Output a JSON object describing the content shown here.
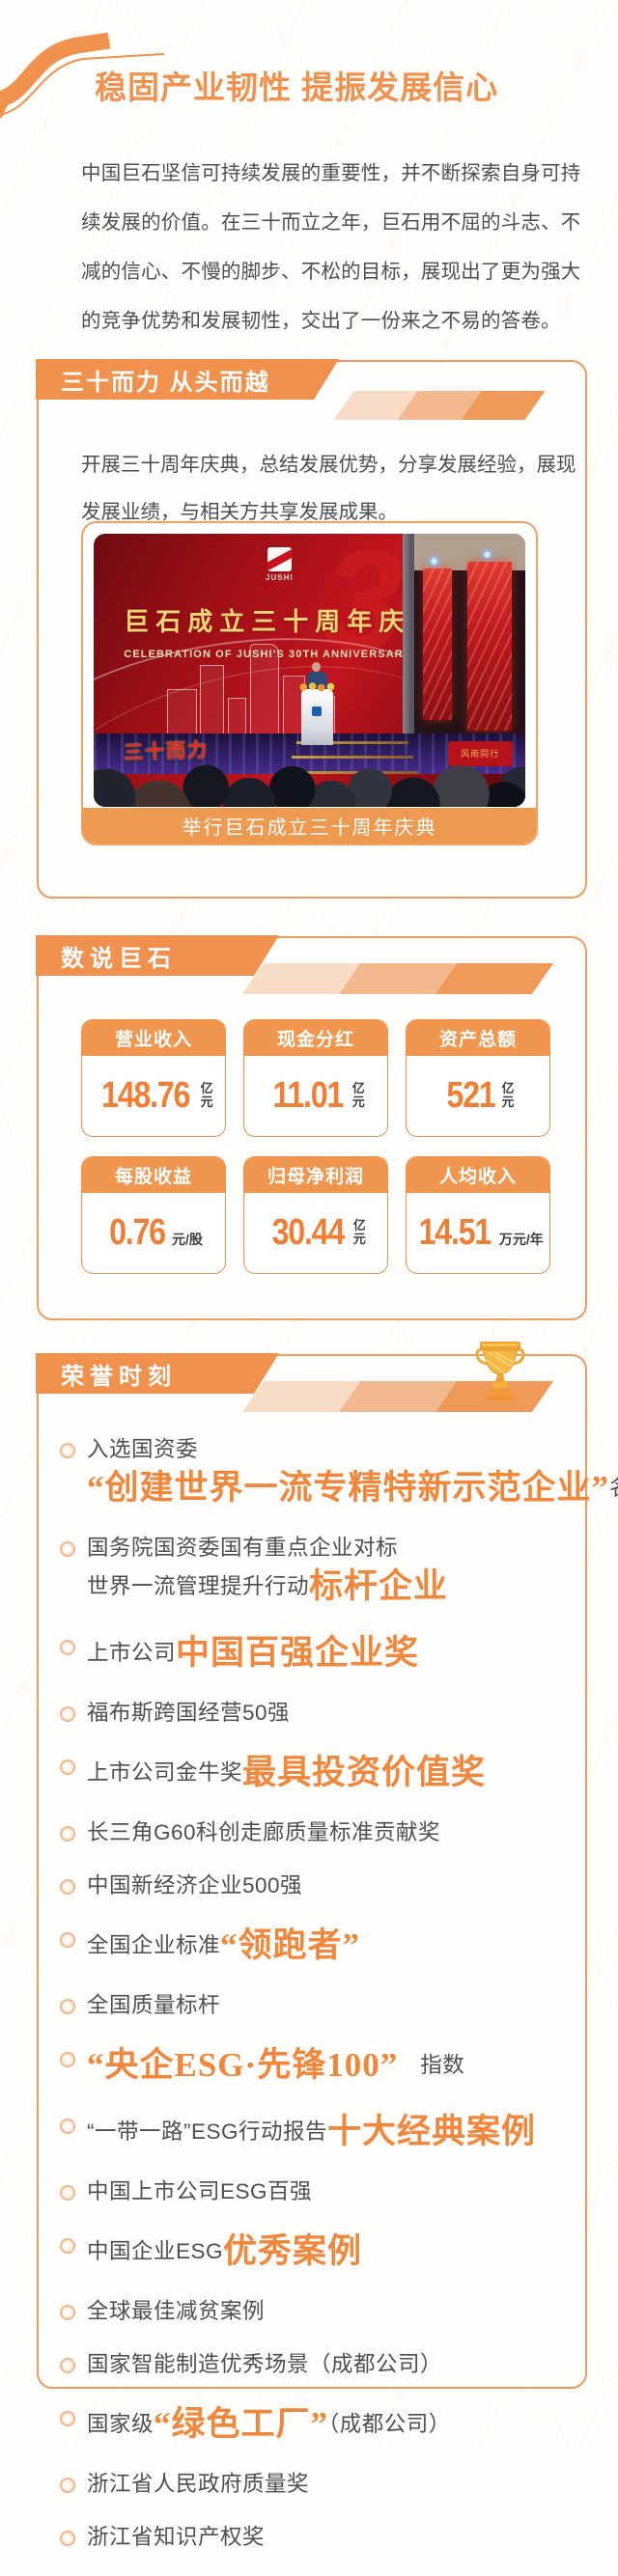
{
  "page": {
    "title": "稳固产业韧性 提振发展信心"
  },
  "intro": {
    "lines": [
      "中国巨石坚信可持续发展的重要性，并不断探索自身可持",
      "续发展的价值。在三十而立之年，巨石用不屈的斗志、不",
      "减的信心、不慢的脚步、不松的目标，展现出了更为强大",
      "的竞争优势和发展韧性，交出了一份来之不易的答卷。"
    ]
  },
  "sections": {
    "anniversary": {
      "ribbon": "三十而力 从头而越",
      "body_lines": [
        "开展三十周年庆典，总结发展优势，分享发展经验，展现",
        "发展业绩，与相关方共享发展成果。"
      ],
      "photo": {
        "screen_title_cn": "巨石成立三十周年庆典",
        "screen_title_en": "CELEBRATION OF JUSHI'S 30TH ANNIVERSARY",
        "logo_text": "JUSHI",
        "ghost_number": "30",
        "stage_left_sign": "三十而力",
        "stage_right_sign": "风雨同行",
        "caption": "举行巨石成立三十周年庆典"
      }
    },
    "stats": {
      "ribbon": "数说巨石",
      "cards": [
        {
          "label": "营业收入",
          "value": "148.76",
          "unit_top": "亿",
          "unit_bottom": "元"
        },
        {
          "label": "现金分红",
          "value": "11.01",
          "unit_top": "亿",
          "unit_bottom": "元"
        },
        {
          "label": "资产总额",
          "value": "521",
          "unit_top": "亿",
          "unit_bottom": "元"
        },
        {
          "label": "每股收益",
          "value": "0.76",
          "unit_inline": "元/股"
        },
        {
          "label": "归母净利润",
          "value": "30.44",
          "unit_top": "亿",
          "unit_bottom": "元"
        },
        {
          "label": "人均收入",
          "value": "14.51",
          "unit_inline": "万元/年"
        }
      ]
    },
    "honors": {
      "ribbon": "荣誉时刻",
      "items": [
        {
          "lines": [
            [
              {
                "t": "入选国资委",
                "s": "n"
              }
            ],
            [
              {
                "t": "“创建世界一流专精特新示范企业”",
                "s": "a"
              },
              {
                "t": "名单",
                "s": "n"
              }
            ]
          ]
        },
        {
          "lines": [
            [
              {
                "t": "国务院国资委国有重点企业对标",
                "s": "n"
              }
            ],
            [
              {
                "t": "世界一流管理提升行动",
                "s": "n"
              },
              {
                "t": "标杆企业",
                "s": "a"
              }
            ]
          ]
        },
        {
          "lines": [
            [
              {
                "t": "上市公司",
                "s": "n"
              },
              {
                "t": "中国百强企业奖",
                "s": "a"
              }
            ]
          ]
        },
        {
          "lines": [
            [
              {
                "t": "福布斯跨国经营50强",
                "s": "n"
              }
            ]
          ]
        },
        {
          "lines": [
            [
              {
                "t": "上市公司金牛奖",
                "s": "n"
              },
              {
                "t": "最具投资价值奖",
                "s": "a"
              }
            ]
          ]
        },
        {
          "lines": [
            [
              {
                "t": "长三角G60科创走廊质量标准贡献奖",
                "s": "n"
              }
            ]
          ]
        },
        {
          "lines": [
            [
              {
                "t": "中国新经济企业500强",
                "s": "n"
              }
            ]
          ]
        },
        {
          "lines": [
            [
              {
                "t": "全国企业标准",
                "s": "n"
              },
              {
                "t": "“领跑者”",
                "s": "a"
              }
            ]
          ]
        },
        {
          "lines": [
            [
              {
                "t": "全国质量标杆",
                "s": "n"
              }
            ]
          ]
        },
        {
          "lines": [
            [
              {
                "t": "“央企ESG·先锋100”",
                "s": "a"
              },
              {
                "t": "　指数",
                "s": "n"
              }
            ]
          ]
        },
        {
          "lines": [
            [
              {
                "t": "“一带一路”ESG行动报告",
                "s": "n"
              },
              {
                "t": "十大经典案例",
                "s": "a"
              }
            ]
          ]
        },
        {
          "lines": [
            [
              {
                "t": "中国上市公司ESG百强",
                "s": "n"
              }
            ]
          ]
        },
        {
          "lines": [
            [
              {
                "t": "中国企业ESG",
                "s": "n"
              },
              {
                "t": "优秀案例",
                "s": "a"
              }
            ]
          ]
        },
        {
          "lines": [
            [
              {
                "t": "全球最佳减贫案例",
                "s": "n"
              }
            ]
          ]
        },
        {
          "lines": [
            [
              {
                "t": "国家智能制造优秀场景（成都公司）",
                "s": "n"
              }
            ]
          ]
        },
        {
          "lines": [
            [
              {
                "t": "国家级",
                "s": "n"
              },
              {
                "t": "“绿色工厂”",
                "s": "a"
              },
              {
                "t": "（成都公司）",
                "s": "n"
              }
            ]
          ]
        },
        {
          "lines": [
            [
              {
                "t": "浙江省人民政府质量奖",
                "s": "n"
              }
            ]
          ]
        },
        {
          "lines": [
            [
              {
                "t": "浙江省知识产权奖",
                "s": "n"
              }
            ]
          ]
        }
      ]
    }
  },
  "colors": {
    "accent_orange": "#F0914D",
    "number_orange": "#F07F35",
    "serif_accent": "#F0873B",
    "caption_bar": "#EE9950",
    "text_gray": "#4F4F4F"
  }
}
